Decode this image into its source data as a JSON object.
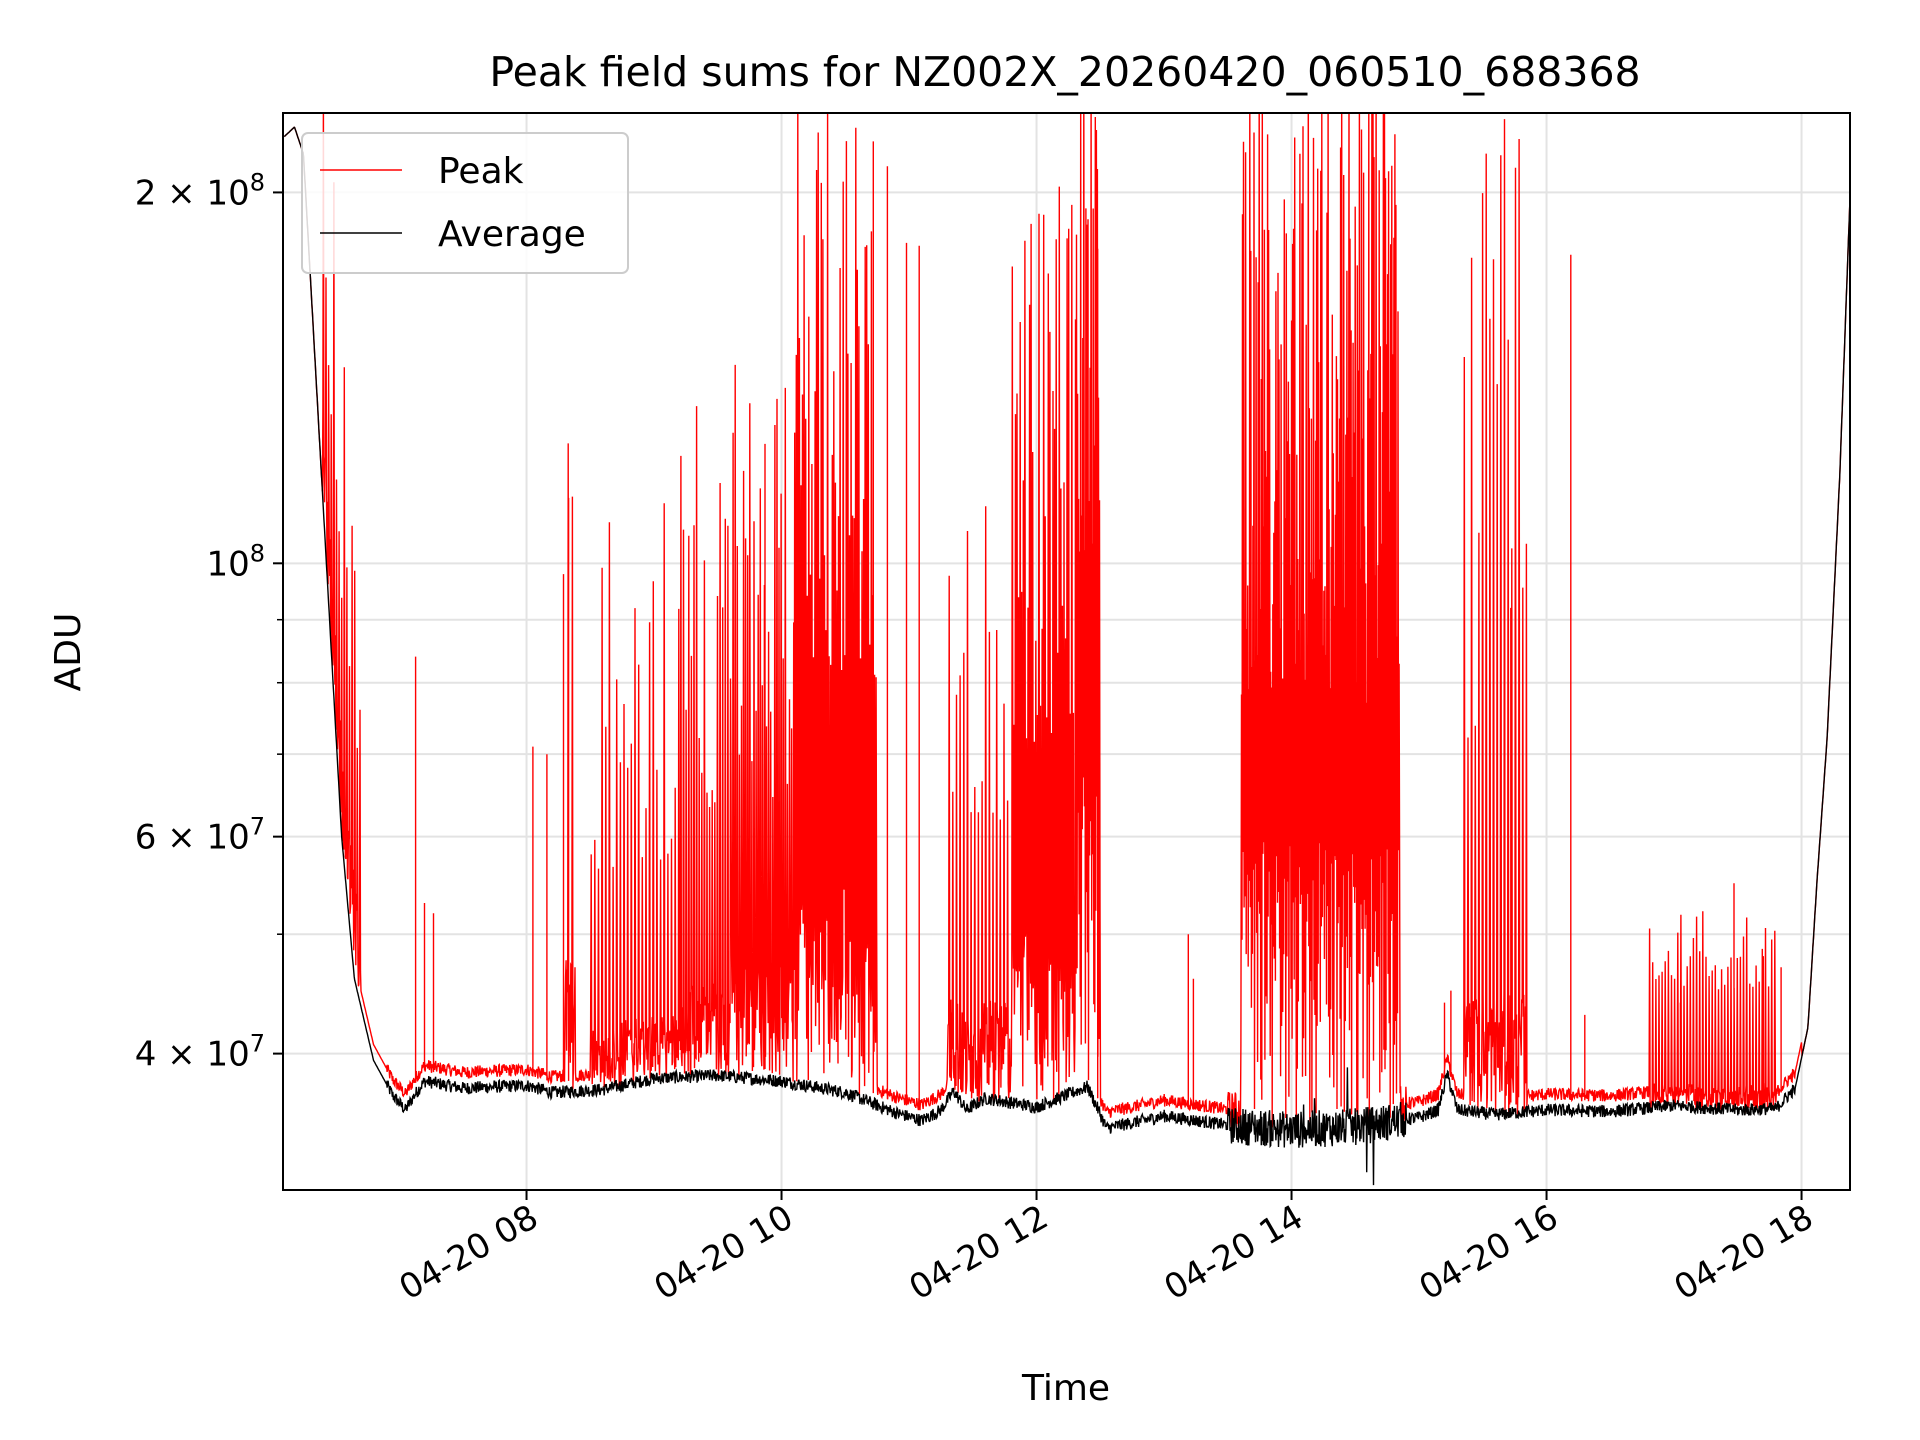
{
  "chart_data": {
    "type": "line",
    "title": "Peak field sums for NZ002X_20260420_060510_688368",
    "xlabel": "Time",
    "ylabel": "ADU",
    "yscale": "log",
    "ylim": [
      31000000,
      232000000
    ],
    "xlim_hours": [
      6.09,
      18.38
    ],
    "grid": true,
    "legend_position": "upper-left",
    "x_ticks": [
      {
        "hour": 8,
        "label": "04-20 08"
      },
      {
        "hour": 10,
        "label": "04-20 10"
      },
      {
        "hour": 12,
        "label": "04-20 12"
      },
      {
        "hour": 14,
        "label": "04-20 14"
      },
      {
        "hour": 16,
        "label": "04-20 16"
      },
      {
        "hour": 18,
        "label": "04-20 18"
      }
    ],
    "y_ticks": [
      {
        "value": 40000000,
        "mantissa": "4",
        "exp": "7"
      },
      {
        "value": 60000000,
        "mantissa": "6",
        "exp": "7"
      },
      {
        "value": 100000000,
        "mantissa": "",
        "exp": "8"
      },
      {
        "value": 200000000,
        "mantissa": "2",
        "exp": "8"
      }
    ],
    "y_minor_ticks": [
      50000000,
      70000000,
      80000000,
      90000000
    ],
    "series": [
      {
        "name": "Peak",
        "color": "#ff0000",
        "baseline_from": "Average",
        "bursts": [
          [
            6.4,
            6.7,
            0.2,
            0.55,
            1.8,
            5
          ],
          [
            8.3,
            8.38,
            0.3,
            1.5,
            2.9,
            8
          ],
          [
            8.5,
            9.2,
            0.12,
            0.5,
            2.0,
            7
          ],
          [
            9.2,
            9.6,
            0.18,
            0.6,
            2.6,
            5
          ],
          [
            9.6,
            10.1,
            0.25,
            0.7,
            2.9,
            4
          ],
          [
            10.1,
            10.75,
            0.5,
            1.2,
            5.6,
            3
          ],
          [
            11.3,
            11.8,
            0.2,
            0.7,
            2.2,
            7
          ],
          [
            11.8,
            12.3,
            0.45,
            1.0,
            4.5,
            3
          ],
          [
            12.3,
            12.5,
            0.8,
            1.6,
            6.0,
            2
          ],
          [
            13.6,
            14.85,
            0.7,
            1.3,
            6.5,
            2
          ],
          [
            15.35,
            15.85,
            0.25,
            1.0,
            5.5,
            7
          ],
          [
            16.8,
            17.8,
            0.04,
            0.25,
            0.45,
            6
          ]
        ],
        "spikes": [
          [
            7.13,
            84000000
          ],
          [
            7.2,
            53000000
          ],
          [
            7.27,
            52000000
          ],
          [
            8.05,
            71000000
          ],
          [
            8.16,
            70000000
          ],
          [
            8.33,
            113000000
          ],
          [
            8.29,
            98000000
          ],
          [
            9.87,
            125000000
          ],
          [
            10.72,
            220000000
          ],
          [
            10.83,
            210000000
          ],
          [
            10.98,
            182000000
          ],
          [
            11.08,
            181000000
          ],
          [
            12.48,
            180000000
          ],
          [
            13.19,
            50000000
          ],
          [
            13.23,
            46000000
          ],
          [
            15.2,
            44000000
          ],
          [
            15.25,
            45000000
          ],
          [
            16.19,
            178000000
          ],
          [
            16.3,
            43000000
          ],
          [
            15.72,
            92000000
          ],
          [
            17.47,
            55000000
          ],
          [
            17.7,
            48000000
          ],
          [
            17.84,
            47000000
          ],
          [
            17.05,
            44000000
          ]
        ]
      },
      {
        "name": "Average",
        "color": "#000000",
        "segments": [
          [
            6.1,
            222000000
          ],
          [
            6.18,
            226000000
          ],
          [
            6.25,
            215000000
          ],
          [
            6.32,
            160000000
          ],
          [
            6.45,
            92000000
          ],
          [
            6.55,
            60000000
          ],
          [
            6.65,
            46000000
          ],
          [
            6.8,
            39500000
          ],
          [
            6.95,
            37000000
          ],
          [
            7.05,
            36000000
          ],
          [
            7.12,
            37000000
          ],
          [
            7.2,
            38000000
          ],
          [
            7.5,
            37500000
          ],
          [
            8.0,
            37700000
          ],
          [
            8.2,
            37200000
          ],
          [
            8.6,
            37400000
          ],
          [
            9.0,
            38200000
          ],
          [
            9.5,
            38400000
          ],
          [
            10.0,
            38000000
          ],
          [
            10.5,
            37200000
          ],
          [
            10.9,
            35800000
          ],
          [
            11.1,
            35300000
          ],
          [
            11.25,
            36000000
          ],
          [
            11.35,
            37300000
          ],
          [
            11.45,
            36000000
          ],
          [
            11.6,
            36800000
          ],
          [
            12.0,
            36200000
          ],
          [
            12.4,
            37600000
          ],
          [
            12.55,
            34800000
          ],
          [
            13.0,
            35600000
          ],
          [
            13.5,
            35000000
          ],
          [
            14.0,
            34700000
          ],
          [
            14.5,
            34900000
          ],
          [
            15.0,
            35500000
          ],
          [
            15.15,
            36000000
          ],
          [
            15.22,
            38500000
          ],
          [
            15.3,
            36000000
          ],
          [
            15.6,
            35700000
          ],
          [
            16.0,
            36000000
          ],
          [
            16.5,
            35900000
          ],
          [
            17.0,
            36300000
          ],
          [
            17.5,
            36000000
          ],
          [
            17.8,
            36100000
          ],
          [
            17.95,
            37500000
          ],
          [
            18.05,
            42000000
          ],
          [
            18.12,
            55000000
          ],
          [
            18.2,
            72000000
          ],
          [
            18.3,
            118000000
          ],
          [
            18.38,
            198000000
          ]
        ]
      }
    ]
  }
}
